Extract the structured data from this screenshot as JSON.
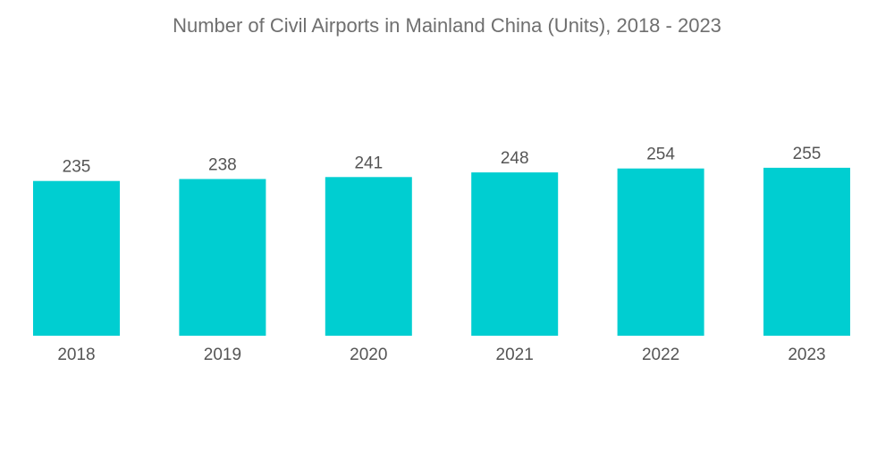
{
  "chart_data": {
    "type": "bar",
    "title": "Number of Civil Airports in Mainland China (Units), 2018 - 2023",
    "categories": [
      "2018",
      "2019",
      "2020",
      "2021",
      "2022",
      "2023"
    ],
    "values": [
      235,
      238,
      241,
      248,
      254,
      255
    ],
    "xlabel": "",
    "ylabel": "",
    "grid": false,
    "legend": "none",
    "data_labels": true,
    "bar_color": "#00ced1"
  }
}
